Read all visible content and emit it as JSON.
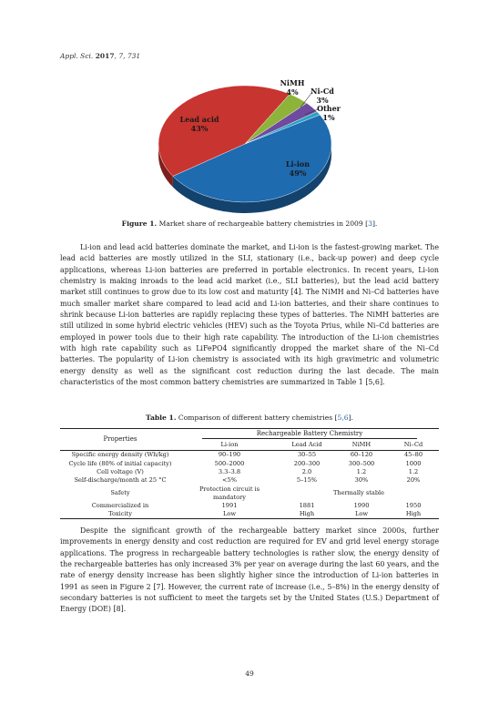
{
  "header": {
    "journal": "Appl. Sci.",
    "year": "2017",
    "rest": ", 7, 731"
  },
  "chart_data": {
    "type": "pie",
    "title": "",
    "slices": [
      {
        "label": "Li-ion",
        "value": 49,
        "text": "49%",
        "color": "#1e6bb0"
      },
      {
        "label": "Lead acid",
        "value": 43,
        "text": "43%",
        "color": "#c8342f"
      },
      {
        "label": "NiMH",
        "value": 4,
        "text": "4%",
        "color": "#8db33a"
      },
      {
        "label": "Ni-Cd",
        "value": 3,
        "text": "3%",
        "color": "#6f4a9e"
      },
      {
        "label": "Other",
        "value": 1,
        "text": "1%",
        "color": "#2aa3c4"
      }
    ]
  },
  "figure_caption": {
    "label": "Figure 1.",
    "text": " Market share of rechargeable battery chemistries in 2009 [",
    "ref": "3",
    "end": "]."
  },
  "paragraph1": "Li-ion and lead acid batteries dominate the market, and Li-ion is the fastest-growing market. The lead acid batteries are mostly utilized in the SLI, stationary (i.e., back-up power) and deep cycle applications, whereas Li-ion batteries are preferred in portable electronics. In recent years, Li-ion chemistry is making inroads to the lead acid market (i.e., SLI batteries), but the lead acid battery market still continues to grow due to its low cost and maturity [4]. The NiMH and Ni–Cd batteries have much smaller market share compared to lead acid and Li-ion batteries, and their share continues to shrink because Li-ion batteries are rapidly replacing these types of batteries. The NiMH batteries are still utilized in some hybrid electric vehicles (HEV) such as the Toyota Prius, while Ni–Cd batteries are employed in power tools due to their high rate capability. The introduction of the Li-ion chemistries with high rate capability such as LiFePO4 significantly dropped the market share of the Ni–Cd batteries. The popularity of Li-ion chemistry is associated with its high gravimetric and volumetric energy density as well as the significant cost reduction during the last decade. The main characteristics of the most common battery chemistries are summarized in Table 1 [5,6].",
  "table_caption": {
    "label": "Table 1.",
    "text": " Comparison of different battery chemistries [",
    "ref": "5,6",
    "end": "]."
  },
  "table": {
    "properties_header": "Properties",
    "group_header": "Rechargeable Battery Chemistry",
    "columns": [
      "Li-ion",
      "Lead Acid",
      "NiMH",
      "Ni–Cd"
    ],
    "rows": [
      {
        "property": "Specific energy density (Wh/kg)",
        "values": [
          "90–190",
          "30–55",
          "60–120",
          "45–80"
        ]
      },
      {
        "property": "Cycle life (80% of initial capacity)",
        "values": [
          "500–2000",
          "200–300",
          "300–500",
          "1000"
        ]
      },
      {
        "property": "Cell voltage (V)",
        "values": [
          "3.3–3.8",
          "2.0",
          "1.2",
          "1.2"
        ]
      },
      {
        "property": "Self-discharge/month at 25 °C",
        "values": [
          "<5%",
          "5–15%",
          "30%",
          "20%"
        ]
      },
      {
        "property": "Safety",
        "li_ion": "Protection circuit is mandatory",
        "others": "Thermally stable"
      },
      {
        "property": "Commercialized in",
        "values": [
          "1991",
          "1881",
          "1990",
          "1950"
        ]
      },
      {
        "property": "Toxicity",
        "values": [
          "Low",
          "High",
          "Low",
          "High"
        ]
      }
    ]
  },
  "paragraph2": "Despite the significant growth of the rechargeable battery market since 2000s, further improvements in energy density and cost reduction are required for EV and grid level energy storage applications. The progress in rechargeable battery technologies is rather slow, the energy density of the rechargeable batteries has only increased 3% per year on average during the last 60 years, and the rate of energy density increase has been slightly higher since the introduction of Li-ion batteries in 1991 as seen in Figure 2 [7]. However, the current rate of increase (i.e., 5–8%) in the energy density of secondary batteries is not sufficient to meet the targets set by the United States (U.S.) Department of Energy (DOE) [8].",
  "page_number": "49"
}
